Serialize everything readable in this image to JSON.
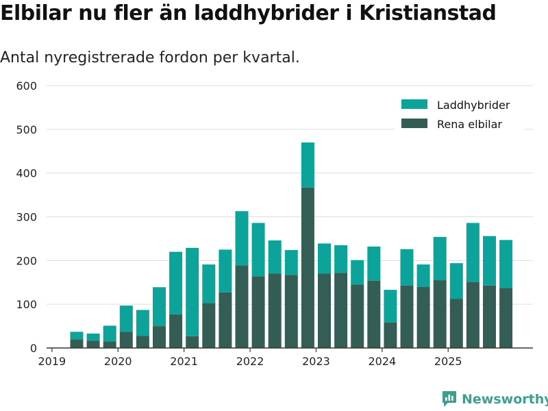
{
  "title": "Elbilar nu fler än laddhybrider i Kristianstad",
  "subtitle": "Antal nyregistrerade fordon per kvartal.",
  "brand": "Newsworthy",
  "colors": {
    "laddhybrider": "#0ba39a",
    "rena_elbilar": "#345e55",
    "grid": "#dddddd",
    "axis": "#333333",
    "logo": "#3f9f8f"
  },
  "chart_data": {
    "type": "bar",
    "stacked": true,
    "x_tick_labels": [
      "2019",
      "2020",
      "2021",
      "2022",
      "2023",
      "2024",
      "2025"
    ],
    "categories": [
      "2019Q2",
      "2019Q3",
      "2019Q4",
      "2020Q1",
      "2020Q2",
      "2020Q3",
      "2020Q4",
      "2021Q1",
      "2021Q2",
      "2021Q3",
      "2021Q4",
      "2022Q1",
      "2022Q2",
      "2022Q3",
      "2022Q4",
      "2023Q1",
      "2023Q2",
      "2023Q3",
      "2023Q4",
      "2024Q1",
      "2024Q2",
      "2024Q3",
      "2024Q4",
      "2025Q1",
      "2025Q2",
      "2025Q3",
      "2025Q4"
    ],
    "series": [
      {
        "name": "Rena elbilar",
        "values": [
          20,
          17,
          15,
          37,
          28,
          50,
          77,
          27,
          103,
          127,
          189,
          164,
          170,
          167,
          367,
          170,
          172,
          145,
          154,
          58,
          143,
          140,
          155,
          112,
          151,
          143,
          137
        ]
      },
      {
        "name": "Laddhybrider",
        "values": [
          17,
          16,
          36,
          60,
          59,
          89,
          143,
          202,
          88,
          98,
          124,
          122,
          76,
          57,
          103,
          69,
          63,
          56,
          78,
          75,
          83,
          51,
          99,
          82,
          135,
          113,
          110
        ]
      }
    ],
    "legend": [
      "Laddhybrider",
      "Rena elbilar"
    ],
    "legend_position": "top-right",
    "y_ticks": [
      0,
      100,
      200,
      300,
      400,
      500,
      600
    ],
    "ylim": [
      0,
      600
    ],
    "grid": true,
    "xlabel": "",
    "ylabel": ""
  }
}
